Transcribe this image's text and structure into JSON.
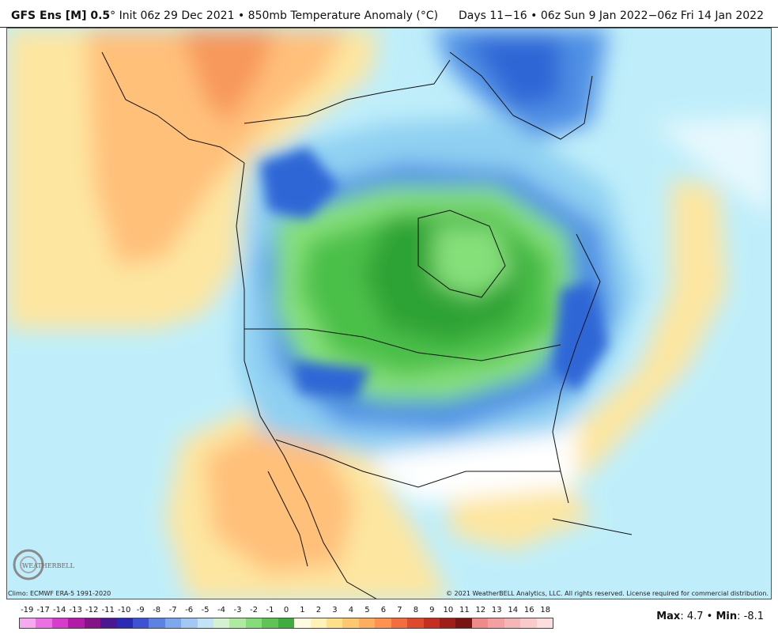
{
  "header": {
    "model": "GFS Ens [M] 0.5",
    "degree": "°",
    "init": "Init 06z 29 Dec 2021",
    "sep": "•",
    "field": "850mb Temperature Anomaly (°C)",
    "valid": "Days 11−16 • 06z Sun 9 Jan 2022−06z Fri 14 Jan 2022"
  },
  "footer": {
    "climo": "Climo: ECMWF ERA-5 1991-2020",
    "copyright": "© 2021 WeatherBELL Analytics, LLC. All rights reserved. License required for commercial distribution."
  },
  "logo": {
    "text": "WEATHERBELL",
    "icon": "swirl-logo-icon"
  },
  "colorbar": {
    "labels": [
      "-19",
      "-17",
      "-14",
      "-13",
      "-12",
      "-11",
      "-10",
      "-9",
      "-8",
      "-7",
      "-6",
      "-5",
      "-4",
      "-3",
      "-2",
      "-1",
      "0",
      "1",
      "2",
      "3",
      "4",
      "5",
      "6",
      "7",
      "8",
      "9",
      "10",
      "11",
      "12",
      "13",
      "14",
      "16",
      "18"
    ],
    "colors": [
      "#f6a8f0",
      "#ec6fe4",
      "#d83ccc",
      "#b21ca8",
      "#861288",
      "#4a1694",
      "#2a2ab4",
      "#3e52d4",
      "#5c82e4",
      "#7ea8ee",
      "#a4c8f4",
      "#c2e2f8",
      "#d4f2d0",
      "#aeeaa0",
      "#86dc78",
      "#5ec454",
      "#3eac3e",
      "#fffbe0",
      "#fff2b4",
      "#ffe08a",
      "#ffc870",
      "#ffad5e",
      "#ff9250",
      "#f56c3e",
      "#e04a2c",
      "#c62e20",
      "#a01e18",
      "#7a1412",
      "#ee8a8a",
      "#f4a0a0",
      "#f7b6b6",
      "#facaca",
      "#fcdede"
    ]
  },
  "stats": {
    "max_label": "Max",
    "max": ": 4.7",
    "sep": " • ",
    "min_label": "Min",
    "min": ": -8.1"
  },
  "map": {
    "region": "North America",
    "colors": {
      "ocean_base": "#bfeefa",
      "warm_yellow": "#fde6a0",
      "warm_orange": "#ffc07a",
      "warm_dark": "#f7985c",
      "cold_light_blue": "#8fd0f2",
      "cold_blue": "#4f8fe4",
      "cold_deep_blue": "#2f66d6",
      "green_light": "#86e07a",
      "green": "#4cc048",
      "green_dark": "#2ea334",
      "neutral": "#ffffff"
    }
  }
}
